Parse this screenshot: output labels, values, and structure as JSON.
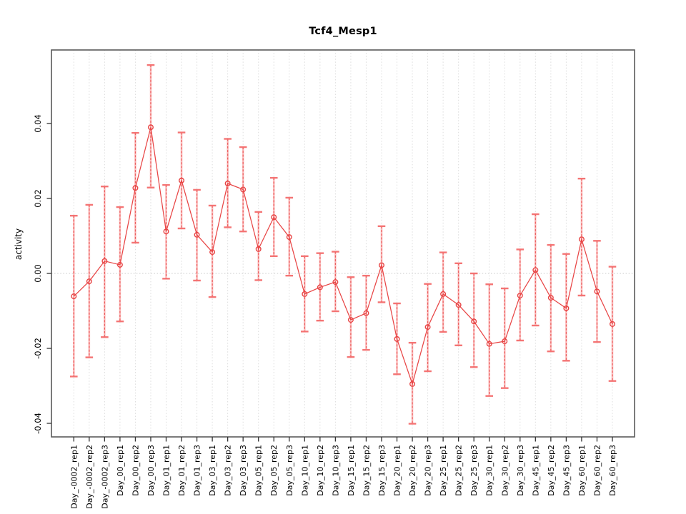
{
  "title": "Tcf4_Mesp1",
  "chart_data": {
    "type": "line",
    "title": "Tcf4_Mesp1",
    "xlabel": "",
    "ylabel": "activity",
    "legend_position": "none",
    "grid": {
      "vertical_dotted": true,
      "zero_line_dotted": true
    },
    "marker": "open-circle",
    "point_color": "#e84545",
    "errorbar_color": "#f58585",
    "grid_color": "#dcdcdc",
    "ylim": [
      -0.0436,
      0.0596
    ],
    "yticks": [
      -0.04,
      -0.02,
      0.0,
      0.02,
      0.04
    ],
    "categories": [
      "Day_-0002_rep1",
      "Day_-0002_rep2",
      "Day_-0002_rep3",
      "Day_00_rep1",
      "Day_00_rep2",
      "Day_00_rep3",
      "Day_01_rep1",
      "Day_01_rep2",
      "Day_01_rep3",
      "Day_03_rep1",
      "Day_03_rep2",
      "Day_03_rep3",
      "Day_05_rep1",
      "Day_05_rep2",
      "Day_05_rep3",
      "Day_10_rep1",
      "Day_10_rep2",
      "Day_10_rep3",
      "Day_15_rep1",
      "Day_15_rep2",
      "Day_15_rep3",
      "Day_20_rep1",
      "Day_20_rep2",
      "Day_20_rep3",
      "Day_25_rep1",
      "Day_25_rep2",
      "Day_25_rep3",
      "Day_30_rep1",
      "Day_30_rep2",
      "Day_30_rep3",
      "Day_45_rep1",
      "Day_45_rep2",
      "Day_45_rep3",
      "Day_60_rep1",
      "Day_60_rep2",
      "Day_60_rep3"
    ],
    "series": [
      {
        "name": "activity",
        "values": [
          -0.0061,
          -0.0021,
          0.0033,
          0.0023,
          0.0228,
          0.039,
          0.0112,
          0.0248,
          0.0103,
          0.0057,
          0.024,
          0.0224,
          0.0065,
          0.015,
          0.0097,
          -0.0055,
          -0.0037,
          -0.0023,
          -0.0124,
          -0.0106,
          0.0022,
          -0.0175,
          -0.0295,
          -0.0143,
          -0.0055,
          -0.0084,
          -0.0128,
          -0.0188,
          -0.0181,
          -0.0059,
          0.0009,
          -0.0065,
          -0.0093,
          0.0091,
          -0.0048,
          -0.0135
        ],
        "error_high": [
          0.0154,
          0.0183,
          0.0232,
          0.0177,
          0.0375,
          0.0556,
          0.0236,
          0.0376,
          0.0223,
          0.0181,
          0.0359,
          0.0337,
          0.0164,
          0.0255,
          0.0202,
          0.0046,
          0.0054,
          0.0058,
          -0.001,
          -0.0006,
          0.0126,
          -0.008,
          -0.0185,
          -0.0028,
          0.0056,
          0.0027,
          0.0,
          -0.0029,
          -0.004,
          0.0064,
          0.0158,
          0.0076,
          0.0052,
          0.0253,
          0.0087,
          0.0018
        ],
        "error_low": [
          -0.0275,
          -0.0224,
          -0.017,
          -0.0128,
          0.0082,
          0.0229,
          -0.0014,
          0.012,
          -0.0019,
          -0.0063,
          0.0123,
          0.0112,
          -0.0018,
          0.0046,
          -0.0006,
          -0.0155,
          -0.0126,
          -0.0101,
          -0.0223,
          -0.0204,
          -0.0077,
          -0.0269,
          -0.0401,
          -0.0261,
          -0.0156,
          -0.0192,
          -0.025,
          -0.0327,
          -0.0306,
          -0.0179,
          -0.0139,
          -0.0208,
          -0.0233,
          -0.0059,
          -0.0183,
          -0.0287
        ]
      }
    ]
  }
}
